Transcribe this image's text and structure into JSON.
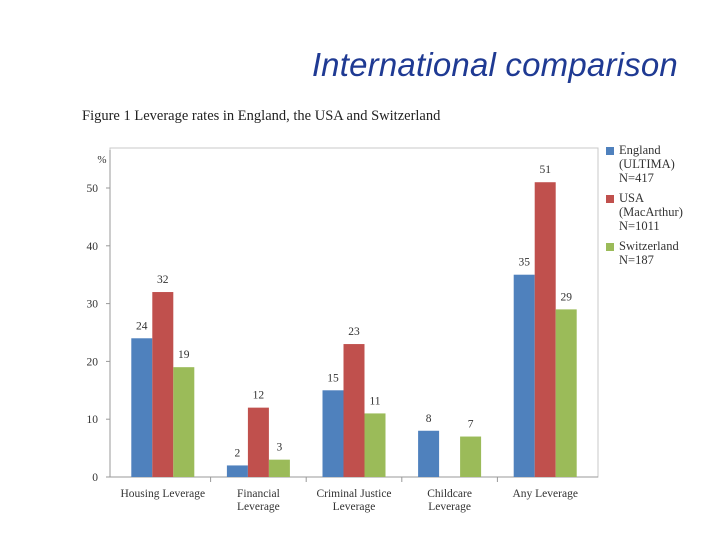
{
  "slide": {
    "title": "International comparison"
  },
  "figure": {
    "caption": "Figure 1 Leverage rates in England, the USA and Switzerland"
  },
  "chart_data": {
    "type": "bar",
    "title": "Figure 1 Leverage rates in England, the USA and Switzerland",
    "ylabel": "%",
    "xlabel": "",
    "ylim": [
      0,
      50
    ],
    "yticks": [
      0,
      10,
      20,
      30,
      40,
      50
    ],
    "grid": false,
    "legend_position": "right",
    "categories": [
      [
        "Housing Leverage"
      ],
      [
        "Financial",
        "Leverage"
      ],
      [
        "Criminal Justice",
        "Leverage"
      ],
      [
        "Childcare",
        "Leverage"
      ],
      [
        "Any Leverage"
      ]
    ],
    "series": [
      {
        "name": "England",
        "legend_lines": [
          "England",
          "(ULTIMA)",
          "N=417"
        ],
        "color": "#4f81bd",
        "values": [
          24,
          2,
          15,
          8,
          35
        ]
      },
      {
        "name": "USA",
        "legend_lines": [
          "USA",
          "(MacArthur)",
          "N=1011"
        ],
        "color": "#c0504d",
        "values": [
          32,
          12,
          23,
          null,
          51
        ]
      },
      {
        "name": "Switzerland",
        "legend_lines": [
          "Switzerland",
          "N=187"
        ],
        "color": "#9bbb59",
        "values": [
          19,
          3,
          11,
          7,
          29
        ]
      }
    ]
  }
}
